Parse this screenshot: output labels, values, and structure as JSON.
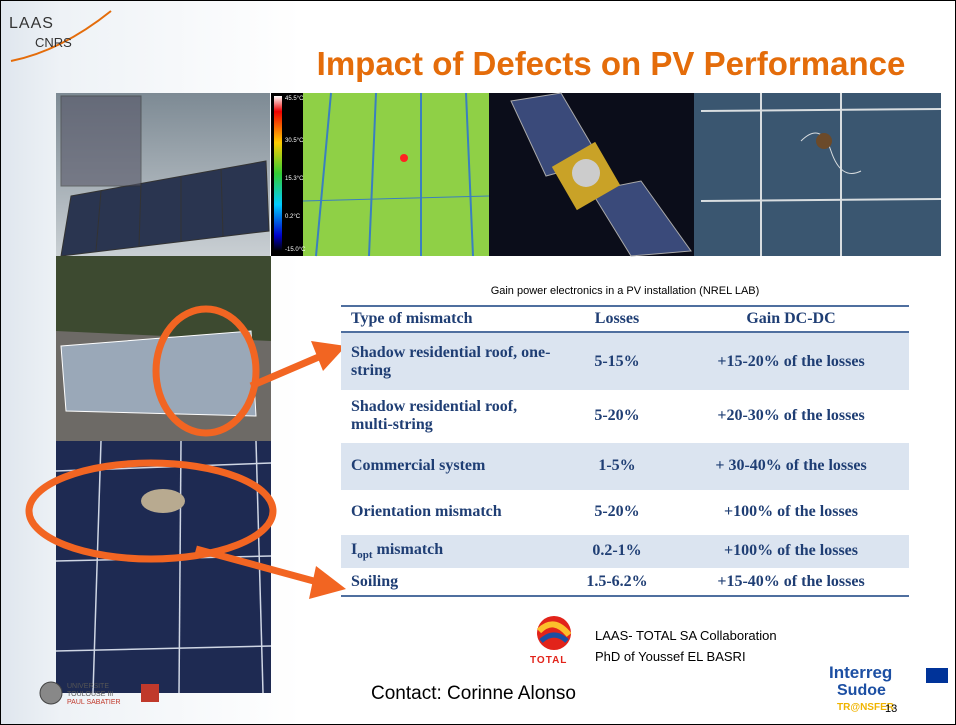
{
  "logo_laas": {
    "line1": "LAAS",
    "line2": "CNRS"
  },
  "title": "Impact of Defects on PV Performance",
  "thermal_scale": [
    "45.5°C",
    "30.5°C",
    "15.3°C",
    "0.2°C",
    "-15.0°C"
  ],
  "table": {
    "caption": "Gain power electronics in a PV installation (NREL LAB)",
    "header": [
      "Type of mismatch",
      "Losses",
      "Gain DC-DC"
    ],
    "rows": [
      [
        "Shadow residential roof, one-string",
        "5-15%",
        "+15-20% of the losses"
      ],
      [
        "Shadow residential roof, multi-string",
        "5-20%",
        "+20-30% of the losses"
      ],
      [
        "Commercial system",
        "1-5%",
        "+ 30-40% of the losses"
      ],
      [
        "Orientation mismatch",
        "5-20%",
        "+100% of the losses"
      ],
      [
        {
          "main": "I",
          "sub": "opt",
          "tail": " mismatch"
        },
        "0.2-1%",
        "+100% of the losses"
      ],
      [
        "Soiling",
        "1.5-6.2%",
        "+15-40% of the losses"
      ]
    ]
  },
  "total_logo": "TOTAL",
  "collaboration": {
    "line1": "LAAS- TOTAL SA Collaboration",
    "line2": "PhD of Youssef EL BASRI"
  },
  "university": {
    "line1": "UNIVERSITE",
    "line2": "TOULOUSE III",
    "line3": "PAUL SABATIER"
  },
  "contact": "Contact: Corinne Alonso",
  "interreg": {
    "line1": "Interreg",
    "line2": "Sudoe",
    "line3": "TR@NSFER"
  },
  "page_number": "13"
}
